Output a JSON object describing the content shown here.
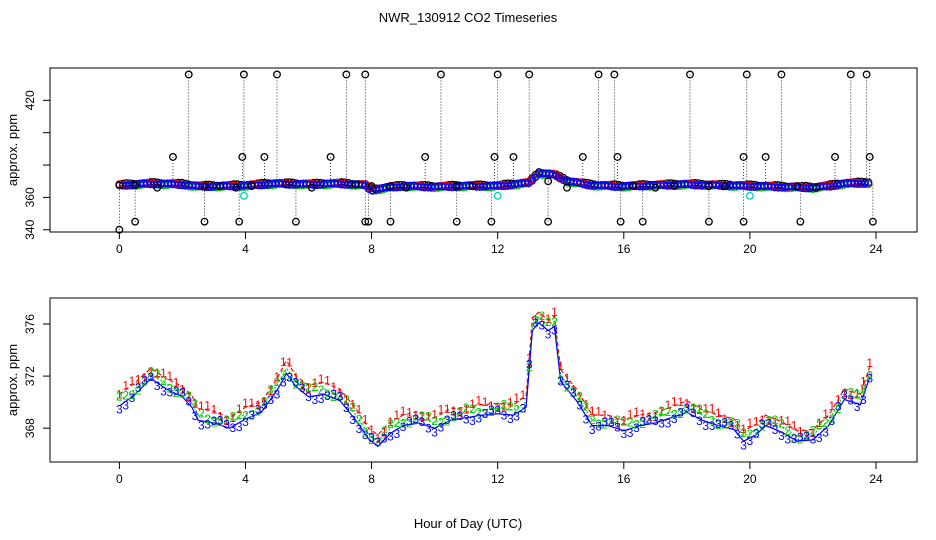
{
  "figure": {
    "title": "NWR_130912  CO2 Timeseries",
    "xlabel": "Hour of Day (UTC)"
  },
  "chart_data": [
    {
      "type": "scatter",
      "panel": "top",
      "title": "",
      "ylabel": "approx. ppm",
      "xlim": [
        -2.2,
        25.3
      ],
      "ylim": [
        338.6,
        440
      ],
      "xticks": [
        0,
        4,
        8,
        12,
        16,
        20,
        24
      ],
      "yticks": [
        340,
        360,
        380,
        400,
        420
      ],
      "ytick_labels": [
        "340",
        "360",
        "",
        "",
        "420"
      ],
      "grid": false,
      "baseline": [
        [
          0.0,
          367.5
        ],
        [
          1.0,
          368.5
        ],
        [
          2.0,
          368.0
        ],
        [
          2.5,
          366.8
        ],
        [
          3.5,
          367.0
        ],
        [
          4.0,
          367.3
        ],
        [
          5.0,
          368.5
        ],
        [
          6.0,
          368.0
        ],
        [
          7.0,
          368.5
        ],
        [
          7.8,
          367.5
        ],
        [
          8.0,
          364.5
        ],
        [
          8.5,
          366.0
        ],
        [
          9.0,
          367.0
        ],
        [
          10.0,
          366.5
        ],
        [
          11.0,
          367.0
        ],
        [
          12.0,
          367.0
        ],
        [
          13.0,
          369.0
        ],
        [
          13.3,
          375.0
        ],
        [
          13.8,
          374.0
        ],
        [
          14.2,
          370.0
        ],
        [
          15.0,
          367.5
        ],
        [
          16.0,
          366.8
        ],
        [
          17.0,
          367.5
        ],
        [
          18.0,
          368.0
        ],
        [
          19.0,
          367.5
        ],
        [
          20.0,
          367.0
        ],
        [
          21.0,
          366.5
        ],
        [
          22.0,
          366.0
        ],
        [
          22.5,
          367.0
        ],
        [
          23.0,
          368.5
        ],
        [
          23.8,
          369.0
        ]
      ],
      "outliers_high": [
        [
          0.0,
          367.5
        ],
        [
          0.5,
          367.5
        ],
        [
          1.2,
          366
        ],
        [
          1.7,
          385
        ],
        [
          2.2,
          436
        ],
        [
          2.7,
          367
        ],
        [
          3.2,
          367
        ],
        [
          3.7,
          366
        ],
        [
          3.9,
          385
        ],
        [
          3.95,
          436
        ],
        [
          4.2,
          367
        ],
        [
          4.6,
          385
        ],
        [
          5.0,
          436
        ],
        [
          5.3,
          368
        ],
        [
          6.1,
          366
        ],
        [
          6.7,
          385
        ],
        [
          7.2,
          436
        ],
        [
          7.5,
          368
        ],
        [
          7.8,
          436
        ],
        [
          8.0,
          367
        ],
        [
          8.6,
          367
        ],
        [
          9.1,
          366
        ],
        [
          9.7,
          385
        ],
        [
          10.2,
          436
        ],
        [
          10.7,
          367
        ],
        [
          11.2,
          367
        ],
        [
          11.9,
          385
        ],
        [
          12.0,
          436
        ],
        [
          12.5,
          385
        ],
        [
          13.0,
          436
        ],
        [
          13.6,
          370
        ],
        [
          14.2,
          366
        ],
        [
          14.7,
          385
        ],
        [
          15.2,
          436
        ],
        [
          15.7,
          436
        ],
        [
          15.8,
          385
        ],
        [
          16.3,
          367
        ],
        [
          17.0,
          366
        ],
        [
          17.6,
          367
        ],
        [
          18.1,
          436
        ],
        [
          18.7,
          367
        ],
        [
          19.2,
          367
        ],
        [
          19.8,
          385
        ],
        [
          19.9,
          436
        ],
        [
          20.5,
          385
        ],
        [
          21.0,
          436
        ],
        [
          21.5,
          367
        ],
        [
          22.1,
          366
        ],
        [
          22.7,
          385
        ],
        [
          23.2,
          436
        ],
        [
          23.7,
          436
        ],
        [
          23.8,
          385
        ]
      ],
      "outliers_low": [
        [
          0.0,
          340.0
        ],
        [
          0.5,
          345
        ],
        [
          2.7,
          345
        ],
        [
          3.8,
          345
        ],
        [
          5.6,
          345
        ],
        [
          7.8,
          345
        ],
        [
          7.9,
          345
        ],
        [
          8.6,
          345
        ],
        [
          10.7,
          345
        ],
        [
          11.8,
          345
        ],
        [
          13.6,
          345
        ],
        [
          15.9,
          345
        ],
        [
          16.6,
          345
        ],
        [
          18.7,
          345
        ],
        [
          19.8,
          345
        ],
        [
          21.6,
          345
        ],
        [
          23.9,
          345
        ]
      ],
      "cyan_points": [
        [
          3.95,
          361
        ],
        [
          12.0,
          361
        ],
        [
          20.0,
          361
        ]
      ]
    },
    {
      "type": "line",
      "panel": "bottom",
      "title": "",
      "ylabel": "approx. ppm",
      "xlim": [
        -2.2,
        25.3
      ],
      "ylim": [
        365.4,
        378.0
      ],
      "xticks": [
        0,
        4,
        8,
        12,
        16,
        20,
        24
      ],
      "yticks": [
        368,
        372,
        376
      ],
      "grid": false,
      "markers": [
        "1",
        "2",
        "3"
      ],
      "series": [
        {
          "name": "1",
          "color": "#ff0000",
          "values": [
            [
              0.0,
              370.6
            ],
            [
              0.5,
              371.5
            ],
            [
              1.0,
              372.6
            ],
            [
              1.5,
              371.8
            ],
            [
              2.0,
              371.2
            ],
            [
              2.3,
              370.5
            ],
            [
              2.5,
              369.5
            ],
            [
              3.0,
              369.3
            ],
            [
              3.5,
              368.8
            ],
            [
              4.0,
              369.6
            ],
            [
              4.5,
              370.0
            ],
            [
              5.0,
              371.8
            ],
            [
              5.3,
              373.2
            ],
            [
              5.6,
              372.0
            ],
            [
              6.0,
              371.3
            ],
            [
              6.5,
              371.5
            ],
            [
              7.0,
              371.0
            ],
            [
              7.5,
              369.5
            ],
            [
              7.9,
              368.0
            ],
            [
              8.2,
              367.5
            ],
            [
              8.6,
              368.5
            ],
            [
              9.0,
              369.0
            ],
            [
              9.5,
              369.3
            ],
            [
              10.0,
              368.8
            ],
            [
              10.5,
              369.5
            ],
            [
              11.0,
              369.6
            ],
            [
              11.5,
              369.8
            ],
            [
              12.0,
              369.9
            ],
            [
              12.5,
              369.8
            ],
            [
              12.9,
              370.5
            ],
            [
              13.1,
              376.5
            ],
            [
              13.3,
              376.9
            ],
            [
              13.6,
              376.3
            ],
            [
              13.8,
              376.6
            ],
            [
              14.0,
              372.5
            ],
            [
              14.5,
              371.0
            ],
            [
              15.0,
              369.0
            ],
            [
              15.5,
              369.0
            ],
            [
              16.0,
              368.6
            ],
            [
              16.5,
              369.0
            ],
            [
              17.0,
              369.2
            ],
            [
              17.5,
              369.6
            ],
            [
              18.0,
              370.1
            ],
            [
              18.5,
              369.4
            ],
            [
              19.0,
              369.0
            ],
            [
              19.5,
              368.7
            ],
            [
              19.8,
              367.8
            ],
            [
              20.2,
              368.3
            ],
            [
              20.5,
              369.0
            ],
            [
              21.0,
              368.5
            ],
            [
              21.5,
              367.8
            ],
            [
              22.0,
              367.9
            ],
            [
              22.5,
              369.0
            ],
            [
              23.0,
              371.0
            ],
            [
              23.5,
              370.6
            ],
            [
              23.8,
              372.7
            ]
          ]
        },
        {
          "name": "2",
          "color": "#00cc00",
          "values": [
            [
              0.0,
              370.1
            ],
            [
              0.5,
              371.0
            ],
            [
              1.0,
              372.1
            ],
            [
              1.5,
              371.4
            ],
            [
              2.0,
              370.8
            ],
            [
              2.3,
              370.0
            ],
            [
              2.5,
              369.0
            ],
            [
              3.0,
              368.8
            ],
            [
              3.5,
              368.4
            ],
            [
              4.0,
              369.1
            ],
            [
              4.5,
              369.6
            ],
            [
              5.0,
              371.3
            ],
            [
              5.3,
              372.6
            ],
            [
              5.6,
              371.6
            ],
            [
              6.0,
              370.8
            ],
            [
              6.5,
              371.0
            ],
            [
              7.0,
              370.5
            ],
            [
              7.5,
              369.0
            ],
            [
              7.9,
              367.6
            ],
            [
              8.2,
              367.0
            ],
            [
              8.6,
              368.0
            ],
            [
              9.0,
              368.6
            ],
            [
              9.5,
              368.8
            ],
            [
              10.0,
              368.4
            ],
            [
              10.5,
              369.0
            ],
            [
              11.0,
              369.2
            ],
            [
              11.5,
              369.4
            ],
            [
              12.0,
              369.5
            ],
            [
              12.5,
              369.4
            ],
            [
              12.9,
              370.0
            ],
            [
              13.1,
              375.9
            ],
            [
              13.3,
              376.5
            ],
            [
              13.6,
              375.9
            ],
            [
              13.8,
              376.2
            ],
            [
              14.0,
              372.0
            ],
            [
              14.5,
              370.5
            ],
            [
              15.0,
              368.6
            ],
            [
              15.5,
              368.6
            ],
            [
              16.0,
              368.2
            ],
            [
              16.5,
              368.6
            ],
            [
              17.0,
              368.8
            ],
            [
              17.5,
              369.2
            ],
            [
              18.0,
              369.6
            ],
            [
              18.5,
              369.0
            ],
            [
              19.0,
              368.6
            ],
            [
              19.5,
              368.3
            ],
            [
              19.8,
              367.4
            ],
            [
              20.2,
              367.9
            ],
            [
              20.5,
              368.6
            ],
            [
              21.0,
              368.1
            ],
            [
              21.5,
              367.4
            ],
            [
              22.0,
              367.5
            ],
            [
              22.5,
              368.6
            ],
            [
              23.0,
              370.6
            ],
            [
              23.5,
              370.2
            ],
            [
              23.8,
              372.3
            ]
          ]
        },
        {
          "name": "3",
          "color": "#0000ff",
          "values": [
            [
              0.0,
              369.7
            ],
            [
              0.5,
              370.6
            ],
            [
              1.0,
              371.8
            ],
            [
              1.5,
              371.0
            ],
            [
              2.0,
              370.4
            ],
            [
              2.3,
              369.6
            ],
            [
              2.5,
              368.6
            ],
            [
              3.0,
              368.4
            ],
            [
              3.5,
              368.0
            ],
            [
              4.0,
              368.7
            ],
            [
              4.5,
              369.2
            ],
            [
              5.0,
              370.9
            ],
            [
              5.3,
              372.2
            ],
            [
              5.6,
              371.2
            ],
            [
              6.0,
              370.4
            ],
            [
              6.5,
              370.6
            ],
            [
              7.0,
              370.1
            ],
            [
              7.5,
              368.6
            ],
            [
              7.9,
              367.2
            ],
            [
              8.2,
              366.6
            ],
            [
              8.6,
              367.6
            ],
            [
              9.0,
              368.2
            ],
            [
              9.5,
              368.4
            ],
            [
              10.0,
              368.0
            ],
            [
              10.5,
              368.6
            ],
            [
              11.0,
              368.8
            ],
            [
              11.5,
              369.0
            ],
            [
              12.0,
              369.1
            ],
            [
              12.5,
              369.0
            ],
            [
              12.9,
              369.6
            ],
            [
              13.1,
              375.5
            ],
            [
              13.3,
              376.1
            ],
            [
              13.6,
              375.5
            ],
            [
              13.8,
              375.8
            ],
            [
              14.0,
              371.6
            ],
            [
              14.5,
              370.1
            ],
            [
              15.0,
              368.2
            ],
            [
              15.5,
              368.2
            ],
            [
              16.0,
              367.8
            ],
            [
              16.5,
              368.2
            ],
            [
              17.0,
              368.4
            ],
            [
              17.5,
              368.8
            ],
            [
              18.0,
              369.2
            ],
            [
              18.5,
              368.6
            ],
            [
              19.0,
              368.2
            ],
            [
              19.5,
              367.9
            ],
            [
              19.8,
              367.0
            ],
            [
              20.2,
              367.5
            ],
            [
              20.5,
              368.2
            ],
            [
              21.0,
              367.7
            ],
            [
              21.5,
              367.0
            ],
            [
              22.0,
              367.1
            ],
            [
              22.5,
              368.2
            ],
            [
              23.0,
              370.2
            ],
            [
              23.5,
              369.8
            ],
            [
              23.8,
              371.9
            ]
          ]
        }
      ]
    }
  ]
}
